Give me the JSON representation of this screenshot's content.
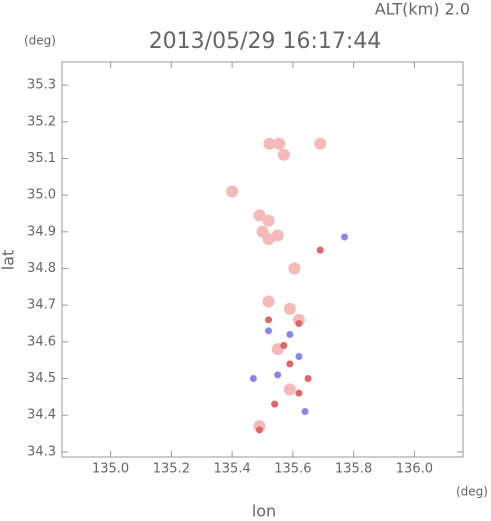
{
  "chart_data": {
    "type": "scatter",
    "title": "2013/05/29 16:17:44",
    "subtitle": "ALT(km) 2.0",
    "x_label": "lon",
    "x_unit": "(deg)",
    "y_label": "lat",
    "y_unit": "(deg)",
    "xlim": [
      134.84,
      136.16
    ],
    "ylim": [
      34.286,
      35.363
    ],
    "xticks": [
      {
        "value": 135,
        "label": "135.0"
      },
      135.2,
      135.4,
      135.6,
      135.8,
      {
        "value": 136,
        "label": "136.0"
      }
    ],
    "yticks": [
      34.3,
      34.4,
      34.5,
      34.6,
      34.7,
      34.8,
      34.9,
      {
        "value": 35,
        "label": "35.0"
      },
      35.1,
      35.2,
      35.3
    ],
    "series": [
      {
        "color": "#f5b9b9",
        "marker_size": 6,
        "x": [
          135.555,
          135.523,
          135.57,
          135.69,
          135.4,
          135.5,
          135.52,
          135.49,
          135.52,
          135.55,
          135.605,
          135.52,
          135.59,
          135.62,
          135.55,
          135.59,
          135.49
        ],
        "y": [
          35.14,
          35.14,
          35.11,
          35.14,
          35.01,
          34.9,
          34.93,
          34.945,
          34.88,
          34.89,
          34.8,
          34.71,
          34.69,
          34.66,
          34.58,
          34.47,
          34.37
        ]
      },
      {
        "color": "#e06666",
        "marker_size": 3.5,
        "x": [
          135.52,
          135.62,
          135.57,
          135.54,
          135.62,
          135.65,
          135.59,
          135.49,
          135.69
        ],
        "y": [
          34.66,
          34.65,
          34.59,
          34.43,
          34.46,
          34.5,
          34.54,
          34.36,
          34.85
        ]
      },
      {
        "color": "#8888ea",
        "marker_size": 3.5,
        "x": [
          135.52,
          135.62,
          135.55,
          135.64,
          135.47,
          135.59,
          135.77
        ],
        "y": [
          34.63,
          34.56,
          34.51,
          34.41,
          34.5,
          34.62,
          34.886
        ]
      }
    ]
  }
}
